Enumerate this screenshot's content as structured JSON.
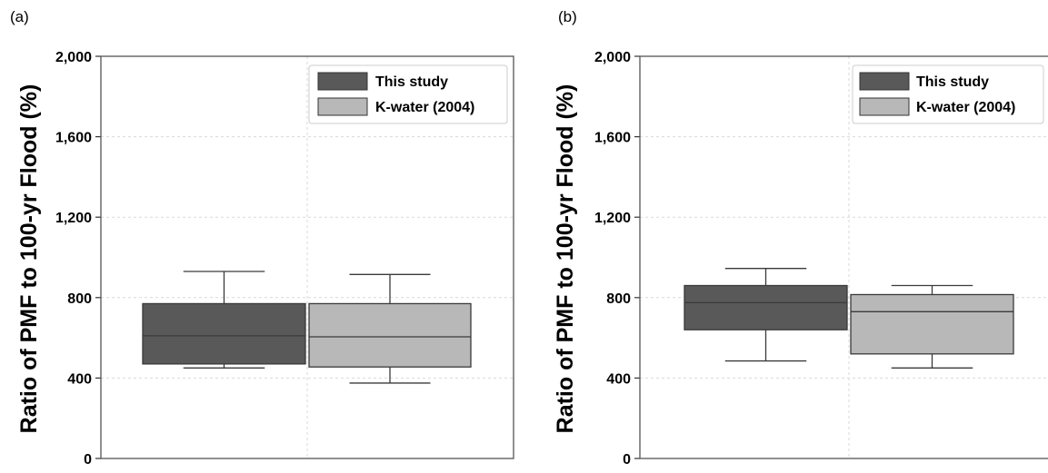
{
  "chart_data": [
    {
      "type": "box",
      "panel_label": "(a)",
      "ylabel": "Ratio of PMF to 100-yr Flood (%)",
      "ylim": [
        0,
        2000
      ],
      "yticks": [
        0,
        400,
        800,
        1200,
        1600,
        2000
      ],
      "ytick_labels": [
        "0",
        "400",
        "800",
        "1,200",
        "1,600",
        "2,000"
      ],
      "grid": true,
      "legend_position": "top-right",
      "series": [
        {
          "name": "This study",
          "color": "#595959",
          "whisker_low": 450,
          "q1": 470,
          "median": 610,
          "q3": 770,
          "whisker_high": 930
        },
        {
          "name": "K-water (2004)",
          "color": "#b8b8b8",
          "whisker_low": 375,
          "q1": 455,
          "median": 605,
          "q3": 770,
          "whisker_high": 915
        }
      ]
    },
    {
      "type": "box",
      "panel_label": "(b)",
      "ylabel": "Ratio of PMF to 100-yr Flood (%)",
      "ylim": [
        0,
        2000
      ],
      "yticks": [
        0,
        400,
        800,
        1200,
        1600,
        2000
      ],
      "ytick_labels": [
        "0",
        "400",
        "800",
        "1,200",
        "1,600",
        "2,000"
      ],
      "grid": true,
      "legend_position": "top-right",
      "series": [
        {
          "name": "This study",
          "color": "#595959",
          "whisker_low": 485,
          "q1": 640,
          "median": 775,
          "q3": 860,
          "whisker_high": 945
        },
        {
          "name": "K-water (2004)",
          "color": "#b8b8b8",
          "whisker_low": 450,
          "q1": 520,
          "median": 730,
          "q3": 815,
          "whisker_high": 860
        }
      ]
    }
  ]
}
